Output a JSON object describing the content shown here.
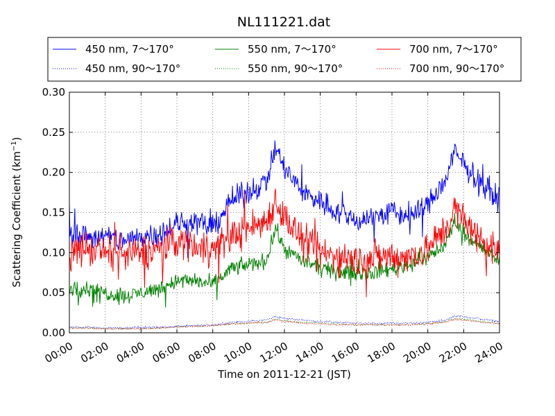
{
  "chart_data": {
    "type": "line",
    "title": "NL111221.dat",
    "xlabel": "Time on 2011-12-21 (JST)",
    "ylabel_main": "Scattering Coefficient (km",
    "ylabel_sup": "−1",
    "ylabel_tail": ")",
    "xlim": [
      "00:00",
      "24:00"
    ],
    "ylim": [
      0.0,
      0.3
    ],
    "grid": true,
    "legend_position": "top",
    "x_tick_labels": [
      "00:00",
      "02:00",
      "04:00",
      "06:00",
      "08:00",
      "10:00",
      "12:00",
      "14:00",
      "16:00",
      "18:00",
      "20:00",
      "22:00",
      "24:00"
    ],
    "y_tick_labels": [
      "0.00",
      "0.05",
      "0.10",
      "0.15",
      "0.20",
      "0.25",
      "0.30"
    ],
    "x_hours": [
      0,
      1,
      2,
      3,
      4,
      5,
      6,
      7,
      8,
      9,
      10,
      11,
      11.5,
      12,
      13,
      14,
      15,
      16,
      17,
      18,
      19,
      20,
      21,
      21.5,
      22,
      23,
      24
    ],
    "series": [
      {
        "name": "450 nm, 7～170°",
        "color": "#0000ff",
        "style": "solid",
        "noise": 0.014,
        "values": [
          0.125,
          0.12,
          0.12,
          0.115,
          0.12,
          0.125,
          0.135,
          0.14,
          0.13,
          0.165,
          0.175,
          0.19,
          0.23,
          0.205,
          0.175,
          0.165,
          0.15,
          0.14,
          0.145,
          0.15,
          0.145,
          0.16,
          0.19,
          0.225,
          0.21,
          0.185,
          0.165
        ]
      },
      {
        "name": "450 nm, 90～170°",
        "color": "#0000ff",
        "style": "dotted",
        "noise": 0.001,
        "values": [
          0.007,
          0.007,
          0.006,
          0.006,
          0.007,
          0.007,
          0.008,
          0.009,
          0.01,
          0.013,
          0.014,
          0.016,
          0.02,
          0.018,
          0.016,
          0.014,
          0.013,
          0.012,
          0.012,
          0.012,
          0.012,
          0.013,
          0.016,
          0.021,
          0.02,
          0.017,
          0.014
        ]
      },
      {
        "name": "550 nm, 7～170°",
        "color": "#008000",
        "style": "solid",
        "noise": 0.009,
        "values": [
          0.055,
          0.055,
          0.05,
          0.045,
          0.05,
          0.055,
          0.065,
          0.065,
          0.06,
          0.08,
          0.085,
          0.09,
          0.13,
          0.105,
          0.09,
          0.08,
          0.075,
          0.075,
          0.075,
          0.08,
          0.085,
          0.095,
          0.11,
          0.14,
          0.125,
          0.105,
          0.09
        ]
      },
      {
        "name": "550 nm, 90～170°",
        "color": "#008000",
        "style": "dotted",
        "noise": 0.0008,
        "values": [
          0.006,
          0.006,
          0.005,
          0.005,
          0.005,
          0.006,
          0.007,
          0.008,
          0.009,
          0.011,
          0.012,
          0.013,
          0.017,
          0.015,
          0.013,
          0.012,
          0.011,
          0.01,
          0.01,
          0.01,
          0.01,
          0.011,
          0.014,
          0.018,
          0.017,
          0.014,
          0.012
        ]
      },
      {
        "name": "700 nm, 7～170°",
        "color": "#ff0000",
        "style": "solid",
        "noise": 0.02,
        "values": [
          0.1,
          0.105,
          0.1,
          0.095,
          0.1,
          0.105,
          0.115,
          0.11,
          0.105,
          0.12,
          0.13,
          0.14,
          0.165,
          0.145,
          0.115,
          0.1,
          0.095,
          0.09,
          0.095,
          0.095,
          0.095,
          0.105,
          0.13,
          0.155,
          0.14,
          0.115,
          0.1
        ]
      },
      {
        "name": "700 nm, 90～170°",
        "color": "#ff0000",
        "style": "dotted",
        "noise": 0.0008,
        "values": [
          0.006,
          0.006,
          0.005,
          0.005,
          0.005,
          0.006,
          0.007,
          0.008,
          0.009,
          0.011,
          0.012,
          0.013,
          0.016,
          0.014,
          0.012,
          0.011,
          0.01,
          0.01,
          0.01,
          0.01,
          0.01,
          0.011,
          0.013,
          0.017,
          0.016,
          0.013,
          0.011
        ]
      }
    ]
  }
}
